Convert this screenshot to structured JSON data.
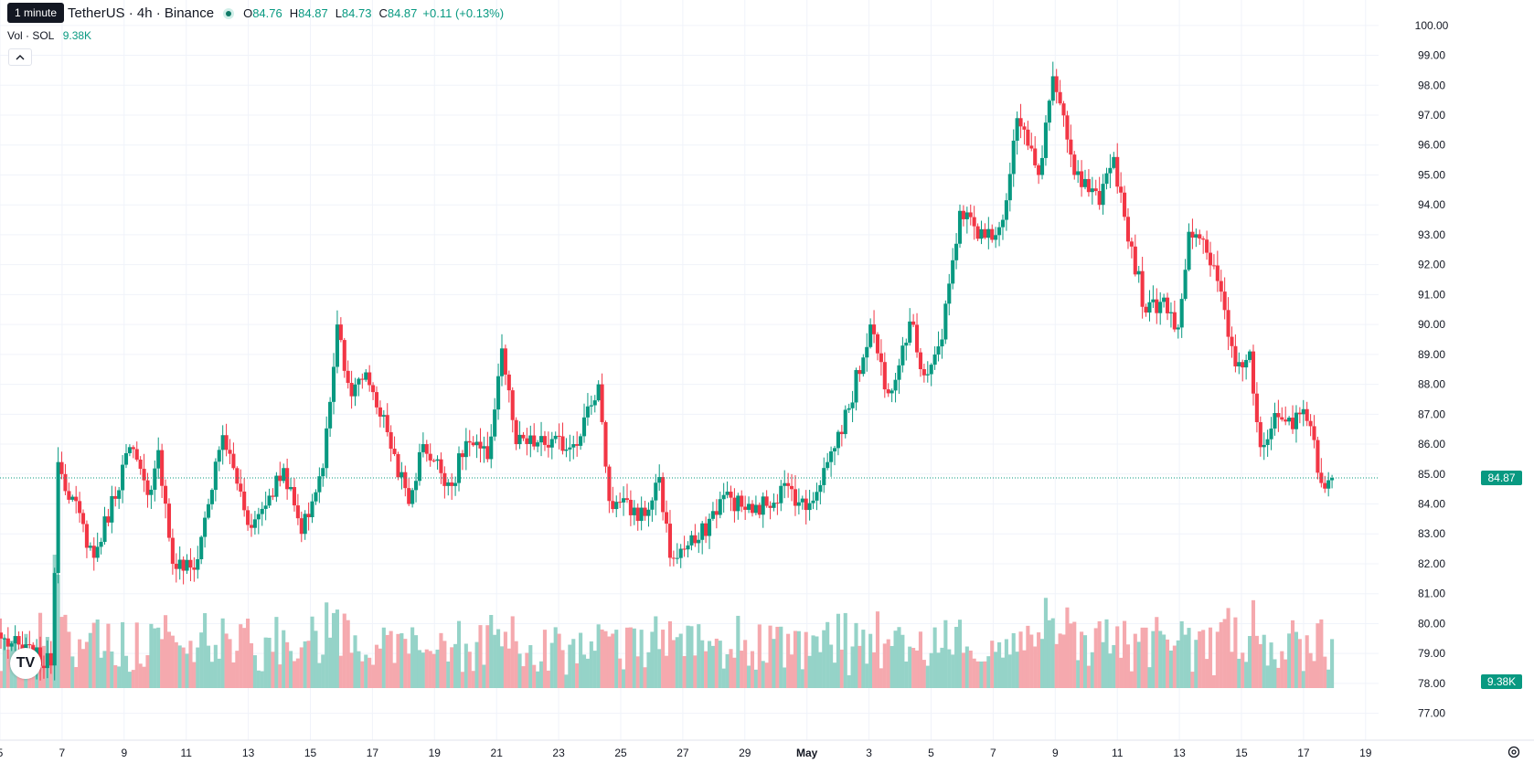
{
  "header": {
    "symbol": "TetherUS · 4h · Binance",
    "tooltip": "1 minute",
    "ohlc": {
      "o_label": "O",
      "o": "84.76",
      "h_label": "H",
      "h": "84.87",
      "l_label": "L",
      "l": "84.73",
      "c_label": "C",
      "c": "84.87",
      "change": "+0.11 (+0.13%)"
    },
    "volume_label": "Vol · SOL",
    "volume_value": "9.38K",
    "collapse_icon": "chevron-up-icon",
    "logo_text": "TV"
  },
  "colors": {
    "up": "#089981",
    "down": "#f23645",
    "up_volume": "#95d3c8",
    "down_volume": "#f5a9ae",
    "grid": "#f0f3fa",
    "price_line": "#089981"
  },
  "chart_data": {
    "type": "candlestick",
    "timeframe": "4h",
    "last_price": "84.87",
    "last_volume": "9.38K",
    "y_ticks": [
      "100.00",
      "99.00",
      "98.00",
      "97.00",
      "96.00",
      "95.00",
      "94.00",
      "93.00",
      "92.00",
      "91.00",
      "90.00",
      "89.00",
      "88.00",
      "87.00",
      "86.00",
      "85.00",
      "84.00",
      "83.00",
      "82.00",
      "81.00",
      "80.00",
      "79.00",
      "78.00",
      "77.00"
    ],
    "x_ticks": [
      "5",
      "7",
      "9",
      "11",
      "13",
      "15",
      "17",
      "19",
      "21",
      "23",
      "25",
      "27",
      "29",
      "May",
      "3",
      "5",
      "7",
      "9",
      "11",
      "13",
      "15",
      "17",
      "19"
    ],
    "ylim": [
      76.5,
      100.3
    ],
    "key_points": [
      {
        "t": 0,
        "close": 79.5
      },
      {
        "t": 14,
        "close": 78.6
      },
      {
        "t": 16,
        "close": 85.4
      },
      {
        "t": 26,
        "close": 82.2
      },
      {
        "t": 36,
        "close": 85.9
      },
      {
        "t": 41,
        "close": 84.3
      },
      {
        "t": 44,
        "close": 85.8
      },
      {
        "t": 48,
        "close": 82.0
      },
      {
        "t": 54,
        "close": 81.8
      },
      {
        "t": 62,
        "close": 86.3
      },
      {
        "t": 70,
        "close": 83.2
      },
      {
        "t": 79,
        "close": 85.2
      },
      {
        "t": 84,
        "close": 83.0
      },
      {
        "t": 90,
        "close": 85.2
      },
      {
        "t": 94,
        "close": 90.0
      },
      {
        "t": 98,
        "close": 87.6
      },
      {
        "t": 102,
        "close": 88.4
      },
      {
        "t": 108,
        "close": 86.4
      },
      {
        "t": 114,
        "close": 84.0
      },
      {
        "t": 118,
        "close": 86.0
      },
      {
        "t": 126,
        "close": 84.6
      },
      {
        "t": 130,
        "close": 86.1
      },
      {
        "t": 136,
        "close": 85.5
      },
      {
        "t": 140,
        "close": 89.2
      },
      {
        "t": 144,
        "close": 86.0
      },
      {
        "t": 160,
        "close": 86.0
      },
      {
        "t": 165,
        "close": 87.3
      },
      {
        "t": 167,
        "close": 88.0
      },
      {
        "t": 170,
        "close": 84.1
      },
      {
        "t": 180,
        "close": 83.6
      },
      {
        "t": 184,
        "close": 84.9
      },
      {
        "t": 187,
        "close": 82.2
      },
      {
        "t": 195,
        "close": 82.8
      },
      {
        "t": 202,
        "close": 84.3
      },
      {
        "t": 210,
        "close": 83.7
      },
      {
        "t": 220,
        "close": 84.6
      },
      {
        "t": 225,
        "close": 83.8
      },
      {
        "t": 231,
        "close": 85.4
      },
      {
        "t": 237,
        "close": 87.2
      },
      {
        "t": 243,
        "close": 90.0
      },
      {
        "t": 248,
        "close": 87.7
      },
      {
        "t": 254,
        "close": 90.1
      },
      {
        "t": 258,
        "close": 88.3
      },
      {
        "t": 263,
        "close": 89.5
      },
      {
        "t": 268,
        "close": 93.8
      },
      {
        "t": 275,
        "close": 92.9
      },
      {
        "t": 280,
        "close": 93.5
      },
      {
        "t": 284,
        "close": 96.9
      },
      {
        "t": 290,
        "close": 95.0
      },
      {
        "t": 294,
        "close": 98.3
      },
      {
        "t": 300,
        "close": 95.0
      },
      {
        "t": 307,
        "close": 94.0
      },
      {
        "t": 311,
        "close": 95.6
      },
      {
        "t": 314,
        "close": 93.6
      },
      {
        "t": 320,
        "close": 90.4
      },
      {
        "t": 325,
        "close": 90.9
      },
      {
        "t": 329,
        "close": 89.9
      },
      {
        "t": 332,
        "close": 93.1
      },
      {
        "t": 337,
        "close": 92.4
      },
      {
        "t": 341,
        "close": 91.1
      },
      {
        "t": 345,
        "close": 88.6
      },
      {
        "t": 349,
        "close": 89.1
      },
      {
        "t": 352,
        "close": 85.9
      },
      {
        "t": 357,
        "close": 86.9
      },
      {
        "t": 361,
        "close": 86.5
      },
      {
        "t": 363,
        "close": 87.0
      },
      {
        "t": 366,
        "close": 86.6
      },
      {
        "t": 369,
        "close": 84.7
      },
      {
        "t": 372,
        "close": 84.87
      }
    ]
  }
}
